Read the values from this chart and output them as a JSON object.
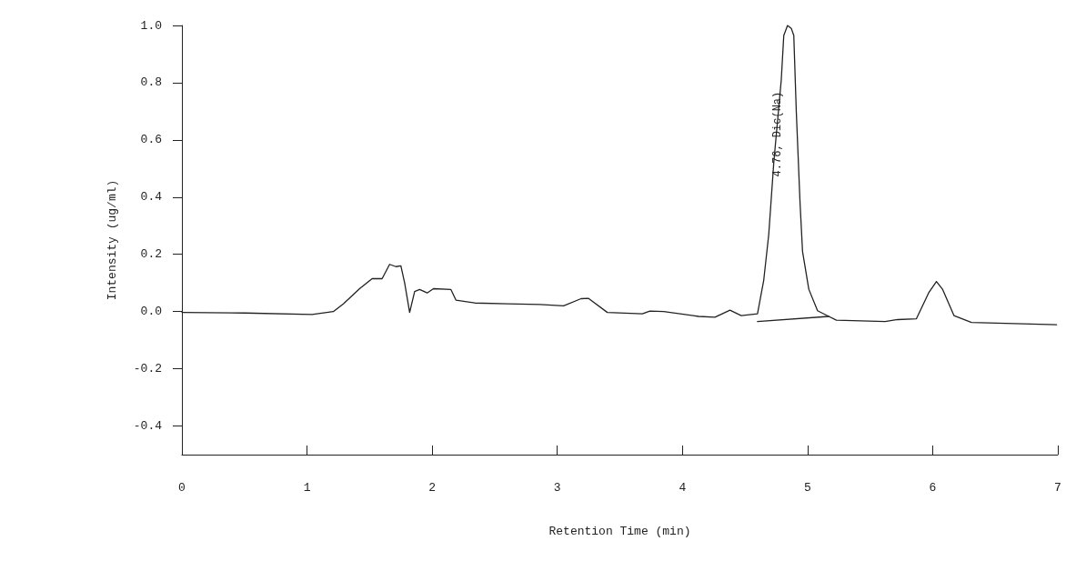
{
  "chart_data": {
    "type": "line",
    "xlabel": "Retention Time (min)",
    "ylabel": "Intensity (ug/ml)",
    "xlim": [
      0,
      7
    ],
    "xticks": [
      0,
      1,
      2,
      3,
      4,
      5,
      6,
      7
    ],
    "ylim": [
      -0.5,
      1.0
    ],
    "yticks": [
      {
        "value": -0.4,
        "label": "-0.4"
      },
      {
        "value": -0.2,
        "label": "-0.2"
      },
      {
        "value": 0,
        "label": "0.0"
      },
      {
        "value": 0.2,
        "label": "0.2"
      },
      {
        "value": 0.4,
        "label": "0.4"
      },
      {
        "value": 0.6,
        "label": "0.6"
      },
      {
        "value": 0.8,
        "label": "0.8"
      },
      {
        "value": 1.0,
        "label": "1.0"
      }
    ],
    "grid": false,
    "marker": "none",
    "line_style": "solid",
    "annotations": [
      {
        "text": "4.76, Dic(Na)",
        "x": 4.76,
        "y": 0.62
      }
    ],
    "series": [
      {
        "color": "#222222",
        "x": [
          0,
          0.5,
          1.04,
          1.21,
          1.29,
          1.42,
          1.52,
          1.6,
          1.66,
          1.71,
          1.75,
          1.78,
          1.82,
          1.86,
          1.9,
          1.96,
          2.01,
          2.15,
          2.19,
          2.34,
          2.6,
          2.86,
          3.05,
          3.19,
          3.25,
          3.4,
          3.68,
          3.74,
          3.85,
          4.13,
          4.26,
          4.38,
          4.47,
          4.6,
          4.65,
          4.69,
          4.73,
          4.79,
          4.81,
          4.84,
          4.87,
          4.89,
          4.91,
          4.94,
          4.96,
          5.01,
          5.08,
          5.17,
          5.23,
          5.62,
          5.72,
          5.87,
          5.97,
          6.03,
          6.08,
          6.17,
          6.31,
          6.99
        ],
        "values": [
          -0.003,
          -0.005,
          -0.01,
          0.0,
          0.027,
          0.08,
          0.115,
          0.115,
          0.165,
          0.157,
          0.16,
          0.1,
          -0.003,
          0.07,
          0.077,
          0.065,
          0.08,
          0.077,
          0.04,
          0.03,
          0.027,
          0.025,
          0.02,
          0.045,
          0.046,
          -0.003,
          -0.008,
          0.002,
          0.0,
          -0.017,
          -0.02,
          0.005,
          -0.014,
          -0.008,
          0.11,
          0.27,
          0.52,
          0.81,
          0.965,
          1.0,
          0.99,
          0.965,
          0.7,
          0.38,
          0.21,
          0.078,
          0.003,
          -0.017,
          -0.03,
          -0.035,
          -0.028,
          -0.025,
          0.067,
          0.105,
          0.077,
          -0.014,
          -0.038,
          -0.046
        ]
      },
      {
        "color": "#222222",
        "x": [
          4.6,
          5.17
        ],
        "values": [
          -0.035,
          -0.017
        ]
      }
    ]
  }
}
